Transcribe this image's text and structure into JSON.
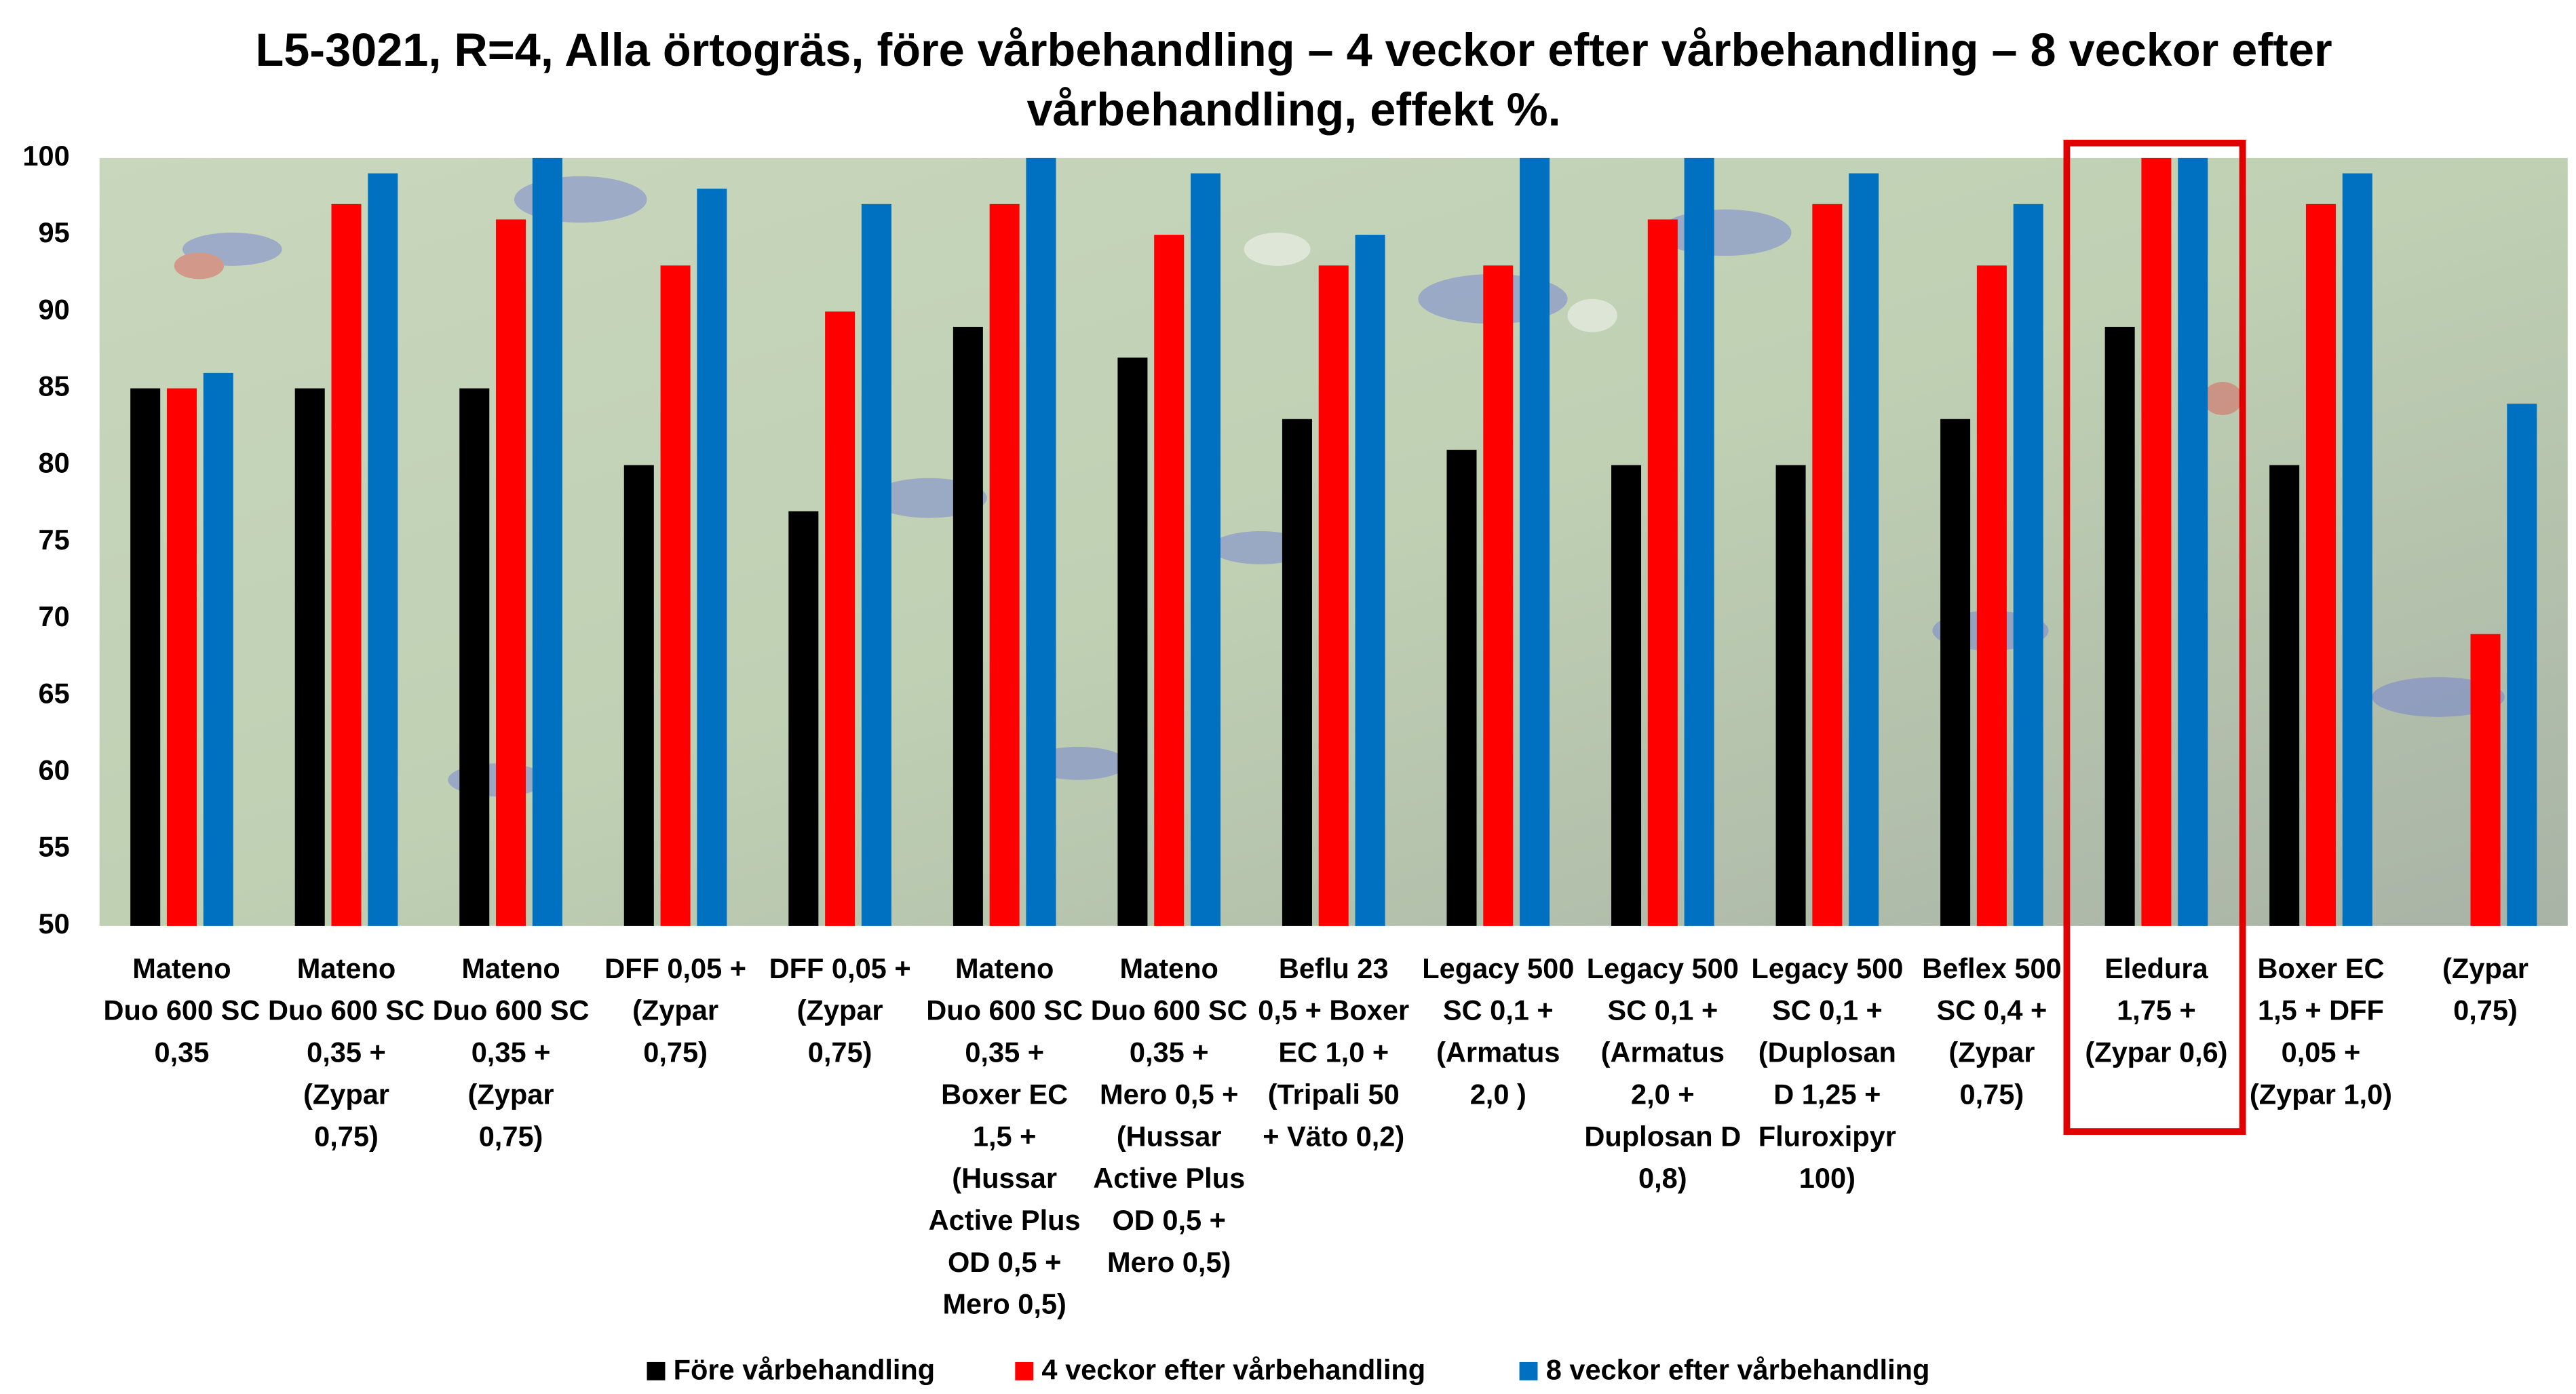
{
  "chart_data": {
    "type": "bar",
    "title": [
      "L5-3021, R=4, Alla örtogräs, före vårbehandling – 4 veckor efter vårbehandling – 8 veckor efter",
      "vårbehandling, effekt %."
    ],
    "categories": [
      [
        "Mateno",
        "Duo 600 SC",
        "0,35"
      ],
      [
        "Mateno",
        "Duo 600 SC",
        "0,35  +",
        "(Zypar",
        "0,75)"
      ],
      [
        "Mateno",
        "Duo 600 SC",
        "0,35  +",
        "(Zypar",
        "0,75)"
      ],
      [
        "DFF 0,05 +",
        "(Zypar",
        "0,75)"
      ],
      [
        "DFF 0,05 +",
        "(Zypar",
        "0,75)"
      ],
      [
        "Mateno",
        "Duo 600 SC",
        "0,35 +",
        "Boxer EC",
        "1,5 +",
        "(Hussar",
        "Active Plus",
        "OD 0,5 +",
        "Mero 0,5)"
      ],
      [
        "Mateno",
        "Duo 600 SC",
        "0,35 +",
        "Mero 0,5 +",
        "(Hussar",
        "Active Plus",
        "OD 0,5 +",
        "Mero 0,5)"
      ],
      [
        "Beflu 23",
        "0,5 + Boxer",
        "EC 1,0 +",
        "(Tripali 50",
        "+ Väto 0,2)"
      ],
      [
        "Legacy 500",
        "SC 0,1 +",
        "(Armatus",
        "2,0 )"
      ],
      [
        "Legacy 500",
        "SC 0,1 +",
        "(Armatus",
        "2,0 +",
        "Duplosan D",
        "0,8)"
      ],
      [
        "Legacy 500",
        "SC 0,1 +",
        "(Duplosan",
        "D 1,25 +",
        "Fluroxipyr",
        "100)"
      ],
      [
        "Beflex 500",
        "SC 0,4 +",
        "(Zypar",
        "0,75)"
      ],
      [
        "Eledura",
        "1,75 +",
        "(Zypar 0,6)"
      ],
      [
        "Boxer EC",
        "1,5 + DFF",
        "0,05 +",
        "(Zypar 1,0)"
      ],
      [
        "(Zypar",
        "0,75)"
      ]
    ],
    "series": [
      {
        "name": "Före vårbehandling",
        "color": "#000000",
        "values": [
          85,
          85,
          85,
          80,
          77,
          89,
          87,
          83,
          81,
          80,
          80,
          83,
          89,
          80,
          null
        ]
      },
      {
        "name": "4 veckor efter vårbehandling",
        "color": "#ff0000",
        "values": [
          85,
          97,
          96,
          93,
          90,
          97,
          95,
          93,
          93,
          96,
          97,
          93,
          100,
          97,
          69
        ]
      },
      {
        "name": "8 veckor efter vårbehandling",
        "color": "#0070c0",
        "values": [
          86,
          99,
          100,
          98,
          97,
          100,
          99,
          95,
          100,
          100,
          99,
          97,
          100,
          99,
          84
        ]
      }
    ],
    "ylim": [
      50,
      100
    ],
    "yticks": [
      50,
      55,
      60,
      65,
      70,
      75,
      80,
      85,
      90,
      95,
      100
    ],
    "grid": false
  }
}
